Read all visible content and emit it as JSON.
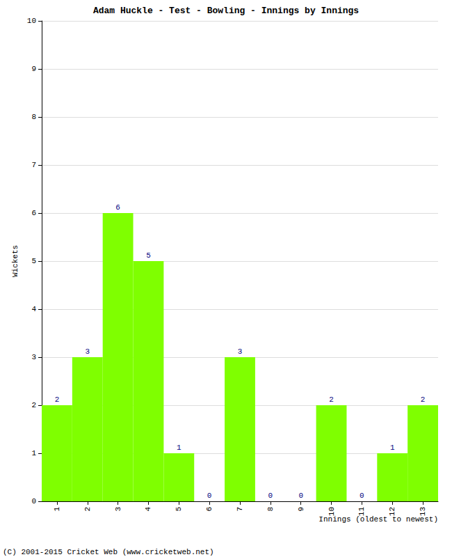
{
  "chart_data": {
    "type": "bar",
    "title": "Adam Huckle - Test - Bowling - Innings by Innings",
    "xlabel": "Innings (oldest to newest)",
    "ylabel": "Wickets",
    "annotations": [
      "(C) 2001-2015 Cricket Web (www.cricketweb.net)"
    ],
    "categories": [
      "1",
      "2",
      "3",
      "4",
      "5",
      "6",
      "7",
      "8",
      "9",
      "10",
      "11",
      "12",
      "13"
    ],
    "values": [
      2,
      3,
      6,
      5,
      1,
      0,
      3,
      0,
      0,
      2,
      0,
      1,
      2
    ],
    "color": "#7fff00",
    "ylim": [
      0,
      10
    ],
    "yticks": [
      0,
      1,
      2,
      3,
      4,
      5,
      6,
      7,
      8,
      9,
      10
    ],
    "grid": true,
    "data_labels": true
  }
}
